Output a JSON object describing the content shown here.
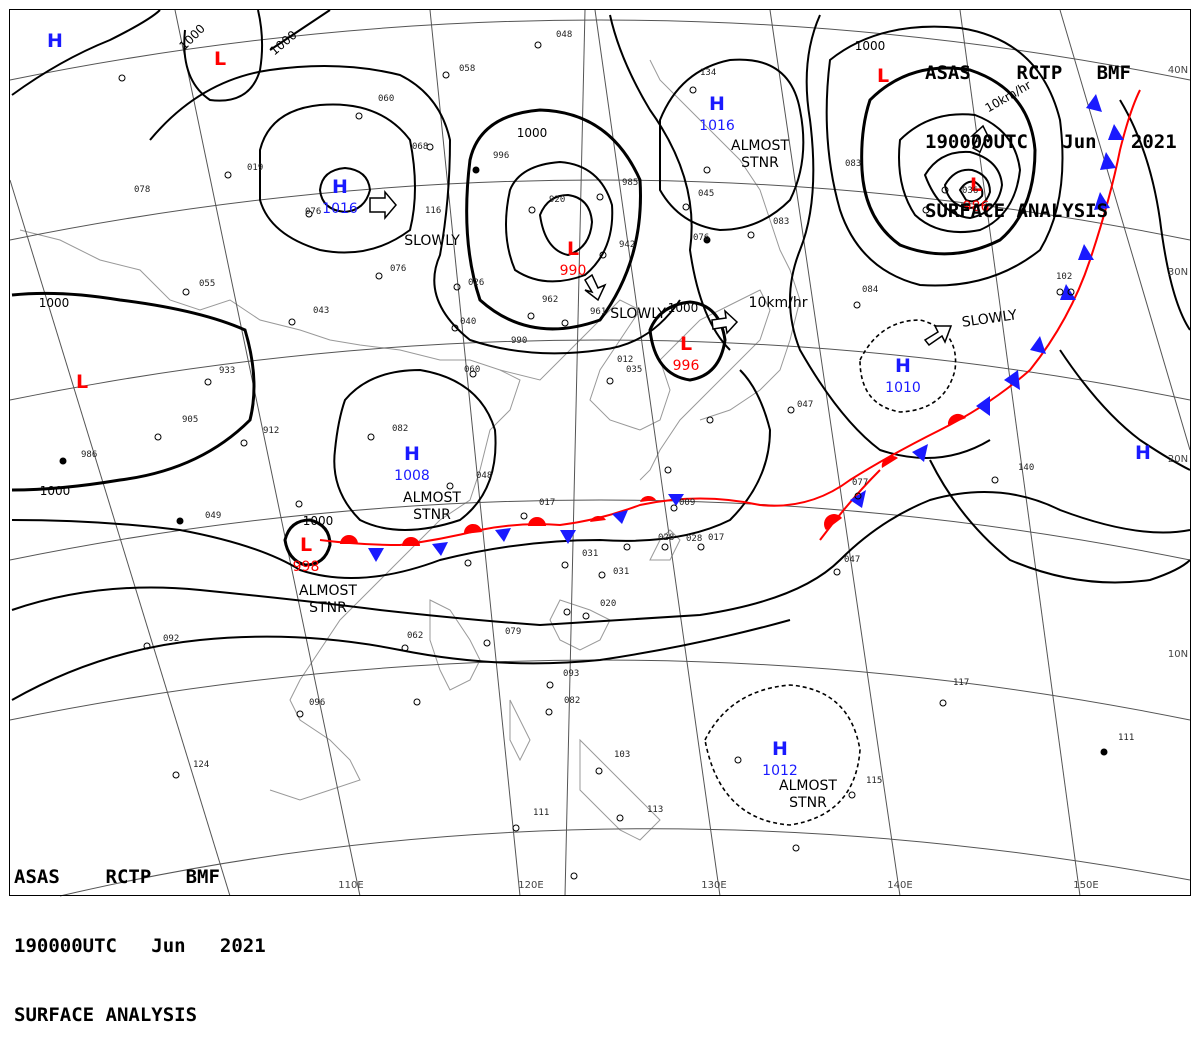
{
  "header": {
    "line1": "ASAS    RCTP   BMF",
    "line2": "190000UTC   Jun   2021",
    "line3": "SURFACE ANALYSIS"
  },
  "footer": {
    "line1": "ASAS    RCTP   BMF",
    "line2": "190000UTC   Jun   2021",
    "line3": "SURFACE ANALYSIS"
  },
  "longitude_labels": [
    "110E",
    "120E",
    "130E",
    "140E",
    "150E"
  ],
  "latitude_labels": [
    "40N",
    "30N",
    "20N",
    "10N"
  ],
  "pressure_centers": [
    {
      "type": "H",
      "value": ""
    },
    {
      "type": "L",
      "value": ""
    },
    {
      "type": "H",
      "value": "1016"
    },
    {
      "type": "L",
      "value": "990"
    },
    {
      "type": "H",
      "value": "1016"
    },
    {
      "type": "L",
      "value": ""
    },
    {
      "type": "L",
      "value": "986"
    },
    {
      "type": "L",
      "value": "996"
    },
    {
      "type": "H",
      "value": "1010"
    },
    {
      "type": "L",
      "value": ""
    },
    {
      "type": "H",
      "value": "1008"
    },
    {
      "type": "L",
      "value": "998"
    },
    {
      "type": "H",
      "value": ""
    },
    {
      "type": "H",
      "value": "1012"
    }
  ],
  "isobar_labels": [
    "1000",
    "1000",
    "1000",
    "1000",
    "1000",
    "1000",
    "1000",
    "1000"
  ],
  "motion_labels": [
    "SLOWLY",
    "SLOWLY",
    "SLOWLY",
    "10km/hr",
    "10km/hr",
    "ALMOST STNR",
    "ALMOST STNR",
    "ALMOST STNR",
    "ALMOST STNR"
  ],
  "station_numbers": [
    "048",
    "058",
    "060",
    "068",
    "019",
    "078",
    "076",
    "116",
    "920",
    "942",
    "962",
    "961",
    "990",
    "040",
    "060",
    "933",
    "905",
    "912",
    "986",
    "049",
    "082",
    "048",
    "017",
    "009",
    "028",
    "031",
    "017",
    "031",
    "020",
    "062",
    "092",
    "079",
    "096",
    "093",
    "082",
    "124",
    "103",
    "113",
    "111",
    "115",
    "117",
    "111",
    "140",
    "102",
    "084",
    "047",
    "077",
    "047",
    "083",
    "076",
    "083",
    "134",
    "045",
    "996",
    "985",
    "055",
    "043",
    "012",
    "076",
    "036",
    "026",
    "028",
    "035"
  ],
  "colors": {
    "high": "#1a1aff",
    "low": "#ff0000",
    "isobar": "#000000",
    "grid": "#555555",
    "coast": "#888888"
  }
}
